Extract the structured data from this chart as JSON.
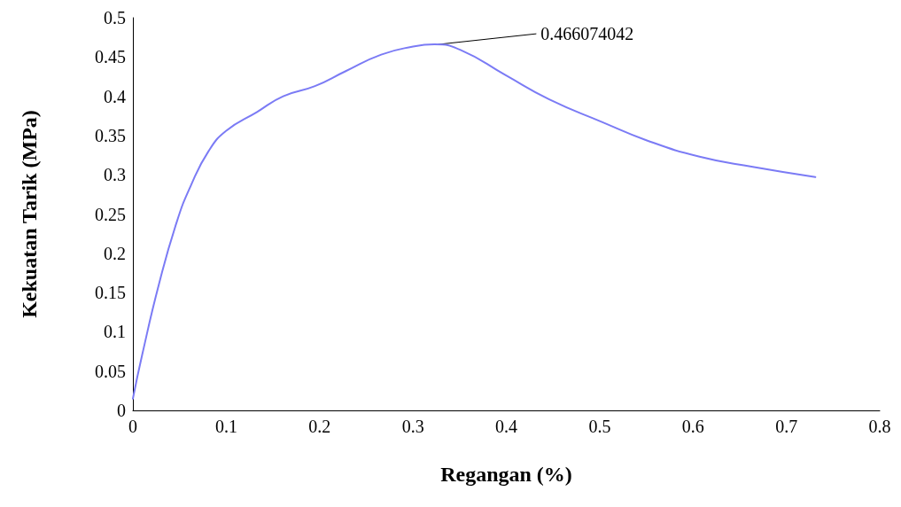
{
  "chart_data": {
    "type": "line",
    "xlabel": "Regangan (%)",
    "ylabel": "Kekuatan Tarik (MPa)",
    "xlim": [
      0,
      0.8
    ],
    "xticks": [
      0,
      0.1,
      0.2,
      0.3,
      0.4,
      0.5,
      0.6,
      0.7,
      0.8
    ],
    "ylim": [
      0,
      0.5
    ],
    "yticks": [
      0,
      0.05,
      0.1,
      0.15,
      0.2,
      0.25,
      0.3,
      0.35,
      0.4,
      0.45,
      0.5
    ],
    "grid": false,
    "marker": "none",
    "line_style": "solid",
    "series": [
      {
        "color": "#7b7bf5",
        "x": [
          0,
          0.01,
          0.028,
          0.047,
          0.062,
          0.081,
          0.1,
          0.133,
          0.161,
          0.195,
          0.228,
          0.266,
          0.299,
          0.323,
          0.351,
          0.399,
          0.446,
          0.503,
          0.55,
          0.607,
          0.664,
          0.731
        ],
        "values": [
          0.015,
          0.071,
          0.161,
          0.24,
          0.286,
          0.33,
          0.356,
          0.38,
          0.4,
          0.413,
          0.432,
          0.453,
          0.463,
          0.466,
          0.459,
          0.427,
          0.396,
          0.367,
          0.344,
          0.323,
          0.31,
          0.297
        ]
      }
    ],
    "annotations": [
      {
        "text": "0.466074042",
        "x": 0.323,
        "y": 0.466
      }
    ]
  }
}
